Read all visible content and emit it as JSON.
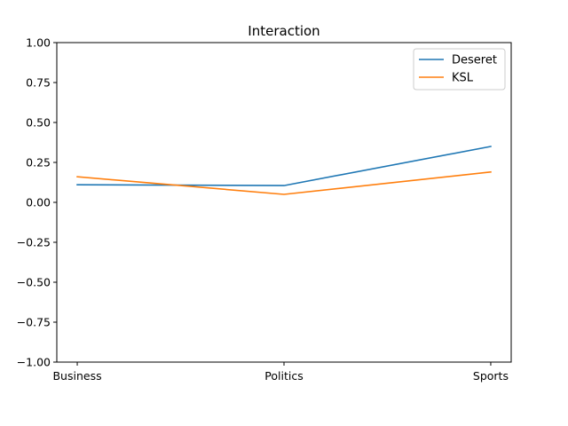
{
  "chart_data": {
    "type": "line",
    "title": "Interaction",
    "xlabel": "",
    "ylabel": "",
    "categories": [
      "Business",
      "Politics",
      "Sports"
    ],
    "ylim": [
      -1.0,
      1.0
    ],
    "yticks": [
      "−1.00",
      "−0.75",
      "−0.50",
      "−0.25",
      "0.00",
      "0.25",
      "0.50",
      "0.75",
      "1.00"
    ],
    "ytick_values": [
      -1.0,
      -0.75,
      -0.5,
      -0.25,
      0.0,
      0.25,
      0.5,
      0.75,
      1.0
    ],
    "grid": false,
    "legend_position": "top-right",
    "series": [
      {
        "name": "Deseret",
        "color": "#1f77b4",
        "values": [
          0.11,
          0.105,
          0.35
        ]
      },
      {
        "name": "KSL",
        "color": "#ff7f0e",
        "values": [
          0.16,
          0.05,
          0.19
        ]
      }
    ]
  }
}
